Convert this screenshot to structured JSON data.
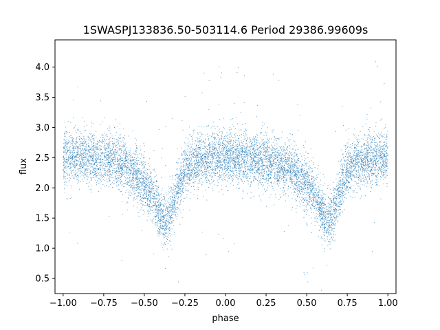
{
  "chart_data": {
    "type": "scatter",
    "title": "1SWASPJ133836.50-503114.6 Period 29386.99609s",
    "xlabel": "phase",
    "ylabel": "flux",
    "xlim": [
      -1.05,
      1.05
    ],
    "ylim": [
      0.25,
      4.45
    ],
    "x_ticks": [
      -1.0,
      -0.75,
      -0.5,
      -0.25,
      0.0,
      0.25,
      0.5,
      0.75,
      1.0
    ],
    "x_tick_labels": [
      "−1.00",
      "−0.75",
      "−0.50",
      "−0.25",
      "0.00",
      "0.25",
      "0.50",
      "0.75",
      "1.00"
    ],
    "y_ticks": [
      0.5,
      1.0,
      1.5,
      2.0,
      2.5,
      3.0,
      3.5,
      4.0
    ],
    "y_tick_labels": [
      "0.5",
      "1.0",
      "1.5",
      "2.0",
      "2.5",
      "3.0",
      "3.5",
      "4.0"
    ],
    "grid": false,
    "marker_color": "#1f77b4",
    "series": [
      {
        "x": [
          -1.0,
          -0.95,
          -0.9,
          -0.85,
          -0.8,
          -0.75,
          -0.7,
          -0.65,
          -0.6,
          -0.55,
          -0.5,
          -0.45,
          -0.42,
          -0.4,
          -0.38,
          -0.36,
          -0.34,
          -0.32,
          -0.3,
          -0.27,
          -0.25,
          -0.2,
          -0.15,
          -0.1,
          -0.05,
          0.0,
          0.05,
          0.1,
          0.15,
          0.2,
          0.25,
          0.3,
          0.35,
          0.4,
          0.45,
          0.5,
          0.55,
          0.58,
          0.6,
          0.62,
          0.64,
          0.66,
          0.68,
          0.7,
          0.73,
          0.75,
          0.8,
          0.85,
          0.9,
          0.95,
          1.0
        ],
        "y": [
          2.45,
          2.5,
          2.52,
          2.5,
          2.48,
          2.47,
          2.45,
          2.4,
          2.3,
          2.2,
          2.05,
          1.85,
          1.7,
          1.55,
          1.45,
          1.45,
          1.55,
          1.75,
          1.9,
          2.15,
          2.3,
          2.4,
          2.45,
          2.5,
          2.5,
          2.5,
          2.52,
          2.5,
          2.48,
          2.47,
          2.45,
          2.4,
          2.35,
          2.3,
          2.2,
          2.05,
          1.85,
          1.7,
          1.55,
          1.45,
          1.45,
          1.55,
          1.75,
          1.9,
          2.15,
          2.3,
          2.4,
          2.45,
          2.5,
          2.5,
          2.45
        ]
      }
    ]
  }
}
